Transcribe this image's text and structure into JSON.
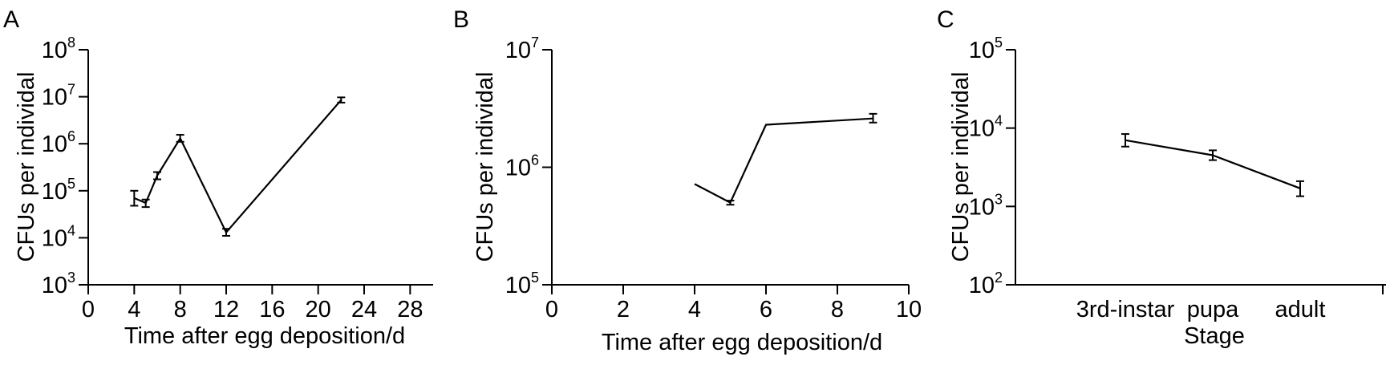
{
  "chart_data": [
    {
      "panel": "A",
      "type": "line",
      "xlabel": "Time after egg deposition/d",
      "ylabel": "CFUs per individal",
      "xlim": [
        0,
        30
      ],
      "xticks": [
        0,
        4,
        8,
        12,
        16,
        20,
        24,
        28
      ],
      "yscale": "log",
      "ylim": [
        1000,
        100000000
      ],
      "yticks": [
        {
          "base": "10",
          "exp": "3"
        },
        {
          "base": "10",
          "exp": "4"
        },
        {
          "base": "10",
          "exp": "5"
        },
        {
          "base": "10",
          "exp": "6"
        },
        {
          "base": "10",
          "exp": "7"
        },
        {
          "base": "10",
          "exp": "8"
        }
      ],
      "x": [
        4,
        5,
        6,
        8,
        12,
        22
      ],
      "y": [
        70000,
        55000,
        210000,
        1300000,
        13000,
        8500000
      ],
      "err_low": [
        48000,
        45000,
        175000,
        1100000,
        11000,
        7500000
      ],
      "err_high": [
        100000,
        65000,
        250000,
        1550000,
        15500,
        9700000
      ],
      "line_from_index": 0
    },
    {
      "panel": "B",
      "type": "line",
      "xlabel": "Time after egg deposition/d",
      "ylabel": "CFUs per individal",
      "xlim": [
        0,
        10
      ],
      "xticks": [
        0,
        2,
        4,
        6,
        8,
        10
      ],
      "yscale": "log",
      "ylim": [
        100000,
        10000000
      ],
      "yticks": [
        {
          "base": "10",
          "exp": "5"
        },
        {
          "base": "10",
          "exp": "6"
        },
        {
          "base": "10",
          "exp": "7"
        }
      ],
      "x": [
        4,
        5,
        6,
        9
      ],
      "y": [
        720000,
        500000,
        2300000,
        2600000
      ],
      "err_low": [
        720000,
        480000,
        2300000,
        2400000
      ],
      "err_high": [
        720000,
        520000,
        2300000,
        2850000
      ],
      "line_from_index": 0
    },
    {
      "panel": "C",
      "type": "line",
      "xlabel": "Stage",
      "ylabel": "CFUs per individal",
      "categories": [
        "3rd-instar",
        "pupa",
        "adult"
      ],
      "yscale": "log",
      "ylim": [
        100,
        100000
      ],
      "yticks": [
        {
          "base": "10",
          "exp": "2"
        },
        {
          "base": "10",
          "exp": "3"
        },
        {
          "base": "10",
          "exp": "4"
        },
        {
          "base": "10",
          "exp": "5"
        }
      ],
      "y": [
        7000,
        4500,
        1700
      ],
      "err_low": [
        5800,
        3900,
        1350
      ],
      "err_high": [
        8400,
        5200,
        2100
      ],
      "line_from_index": 0
    }
  ]
}
